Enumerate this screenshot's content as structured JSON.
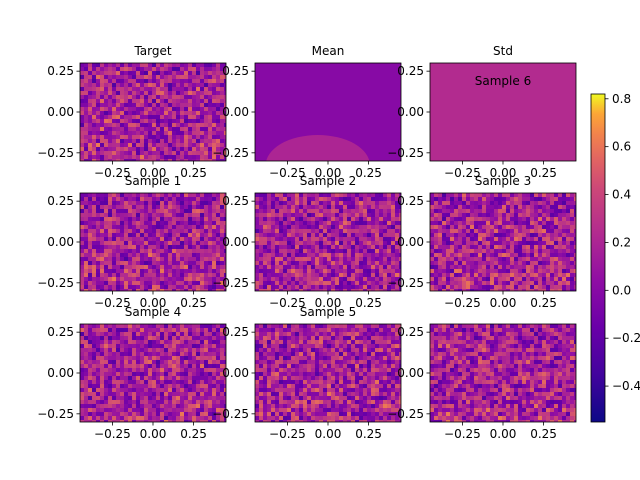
{
  "chart_data": {
    "type": "heatmap",
    "panels": [
      {
        "title": "Target",
        "overlay_text": "",
        "kind": "noise",
        "seed": 11
      },
      {
        "title": "Mean",
        "overlay_text": "",
        "kind": "mean",
        "seed": 0
      },
      {
        "title": "Std",
        "overlay_text": "Sample 6",
        "kind": "flat",
        "seed": 0
      },
      {
        "title": "Sample 1",
        "overlay_text": "",
        "kind": "noise",
        "seed": 21
      },
      {
        "title": "Sample 2",
        "overlay_text": "",
        "kind": "noise",
        "seed": 31
      },
      {
        "title": "Sample 3",
        "overlay_text": "",
        "kind": "noise",
        "seed": 41
      },
      {
        "title": "Sample 4",
        "overlay_text": "",
        "kind": "noise",
        "seed": 51
      },
      {
        "title": "Sample 5",
        "overlay_text": "",
        "kind": "noise",
        "seed": 61
      },
      {
        "title": "",
        "overlay_text": "",
        "kind": "noise",
        "seed": 71
      }
    ],
    "x_ticks": [
      "−0.25",
      "0.00",
      "0.25"
    ],
    "x_tick_values": [
      -0.25,
      0.0,
      0.25
    ],
    "xlim": [
      -0.45,
      0.45
    ],
    "y_ticks": [
      "0.25",
      "0.00",
      "−0.25"
    ],
    "y_tick_values": [
      0.25,
      0.0,
      -0.25
    ],
    "ylim": [
      -0.3,
      0.3
    ],
    "colorbar": {
      "colormap": "plasma",
      "range": [
        -0.55,
        0.82
      ],
      "ticks": [
        {
          "value": 0.8,
          "label": "0.8"
        },
        {
          "value": 0.6,
          "label": "0.6"
        },
        {
          "value": 0.4,
          "label": "0.4"
        },
        {
          "value": 0.2,
          "label": "0.2"
        },
        {
          "value": 0.0,
          "label": "0.0"
        },
        {
          "value": -0.2,
          "label": "−0.2"
        },
        {
          "value": -0.4,
          "label": "−0.4"
        }
      ]
    },
    "mean_panel": {
      "background_value": 0.0,
      "blob_value": 0.2
    },
    "std_panel": {
      "value": 0.24
    }
  }
}
